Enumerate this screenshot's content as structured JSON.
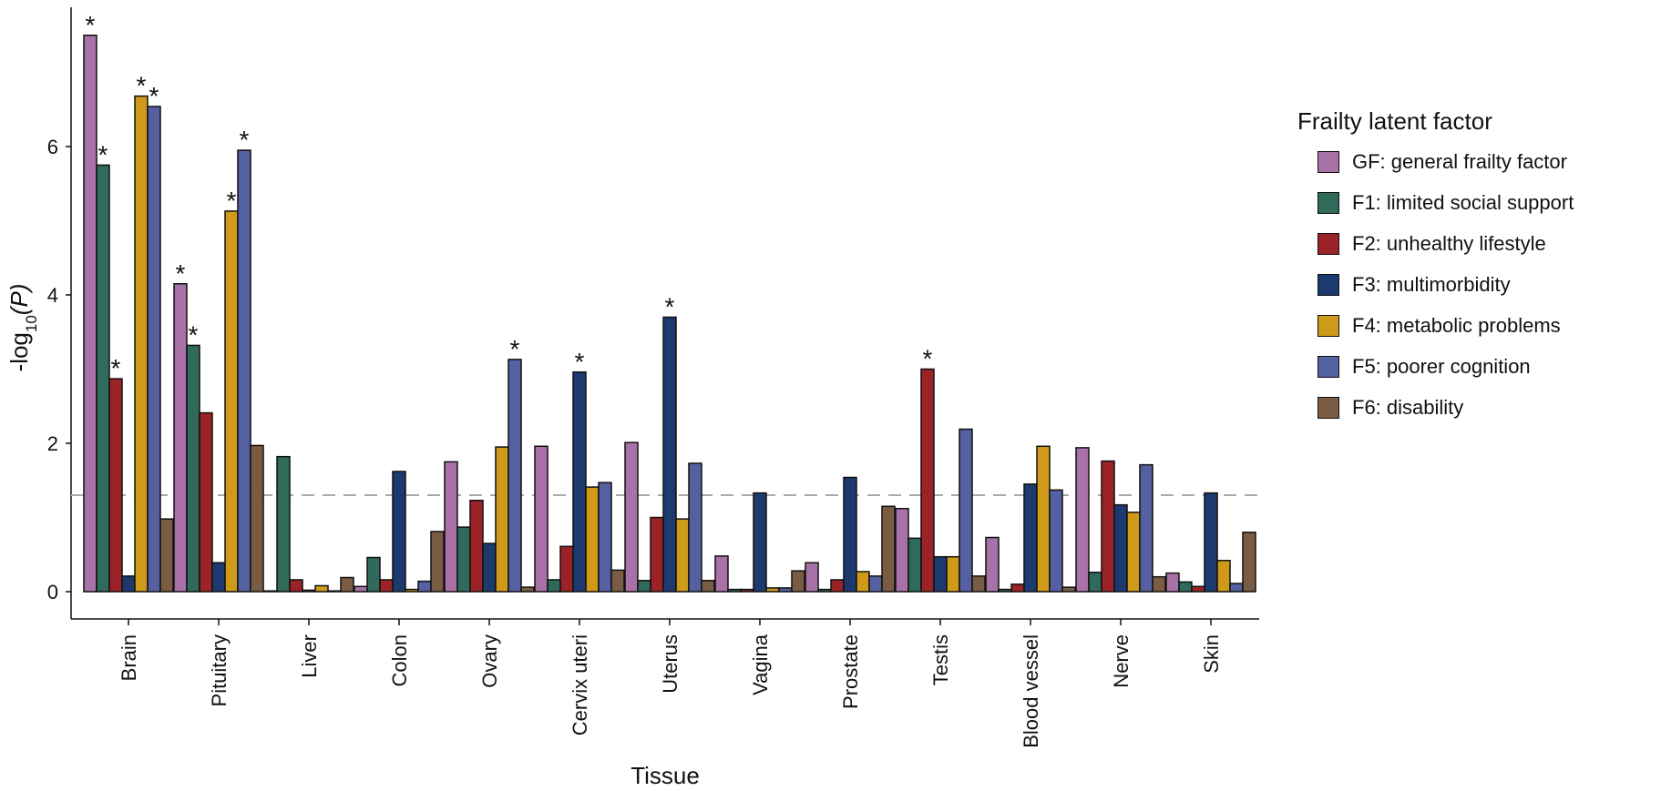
{
  "chart_data": {
    "type": "bar",
    "xlabel": "Tissue",
    "ylabel_main": "-log",
    "ylabel_sub": "10",
    "ylabel_tail": "(P)",
    "ylim": [
      0,
      7.8
    ],
    "yticks": [
      0,
      2,
      4,
      6
    ],
    "threshold": 1.3,
    "legend_title": "Frailty latent factor",
    "legend_position": "right",
    "categories": [
      "Brain",
      "Pituitary",
      "Liver",
      "Colon",
      "Ovary",
      "Cervix uteri",
      "Uterus",
      "Vagina",
      "Prostate",
      "Testis",
      "Blood vessel",
      "Nerve",
      "Skin"
    ],
    "series": [
      {
        "name": "GF: general frailty factor",
        "color": "#a872a8",
        "values": [
          7.5,
          4.15,
          0.0,
          0.07,
          1.75,
          1.96,
          2.01,
          0.48,
          0.39,
          1.12,
          0.73,
          1.94,
          0.25
        ],
        "significant": [
          true,
          true,
          false,
          false,
          false,
          false,
          false,
          false,
          false,
          false,
          false,
          false,
          false
        ]
      },
      {
        "name": "F1: limited social support",
        "color": "#2f6a5a",
        "values": [
          5.75,
          3.32,
          1.82,
          0.46,
          0.87,
          0.16,
          0.15,
          0.03,
          0.03,
          0.72,
          0.03,
          0.26,
          0.13
        ],
        "significant": [
          true,
          true,
          false,
          false,
          false,
          false,
          false,
          false,
          false,
          false,
          false,
          false,
          false
        ]
      },
      {
        "name": "F2: unhealthy lifestyle",
        "color": "#9b2226",
        "values": [
          2.87,
          2.41,
          0.16,
          0.16,
          1.23,
          0.61,
          1.0,
          0.03,
          0.16,
          3.0,
          0.1,
          1.76,
          0.07
        ],
        "significant": [
          true,
          false,
          false,
          false,
          false,
          false,
          false,
          false,
          false,
          true,
          false,
          false,
          false
        ]
      },
      {
        "name": "F3: multimorbidity",
        "color": "#1d3a6e",
        "values": [
          0.21,
          0.39,
          0.02,
          1.62,
          0.65,
          2.96,
          3.7,
          1.33,
          1.54,
          0.47,
          1.45,
          1.17,
          1.33
        ],
        "significant": [
          false,
          false,
          false,
          false,
          false,
          true,
          true,
          false,
          false,
          false,
          false,
          false,
          false
        ]
      },
      {
        "name": "F4: metabolic problems",
        "color": "#cf9a1a",
        "values": [
          6.68,
          5.13,
          0.08,
          0.03,
          1.95,
          1.41,
          0.98,
          0.05,
          0.27,
          0.47,
          1.96,
          1.07,
          0.42
        ],
        "significant": [
          true,
          true,
          false,
          false,
          false,
          false,
          false,
          false,
          false,
          false,
          false,
          false,
          false
        ]
      },
      {
        "name": "F5: poorer cognition",
        "color": "#5560a0",
        "values": [
          6.54,
          5.95,
          0.01,
          0.14,
          3.13,
          1.47,
          1.73,
          0.05,
          0.21,
          2.19,
          1.37,
          1.71,
          0.11
        ],
        "significant": [
          true,
          true,
          false,
          false,
          true,
          false,
          false,
          false,
          false,
          false,
          false,
          false,
          false
        ]
      },
      {
        "name": "F6: disability",
        "color": "#7a5c45",
        "values": [
          0.98,
          1.97,
          0.19,
          0.81,
          0.06,
          0.29,
          0.15,
          0.28,
          1.15,
          0.21,
          0.06,
          0.2,
          0.8
        ],
        "significant": [
          false,
          false,
          false,
          false,
          false,
          false,
          false,
          false,
          false,
          false,
          false,
          false,
          false
        ]
      }
    ]
  }
}
